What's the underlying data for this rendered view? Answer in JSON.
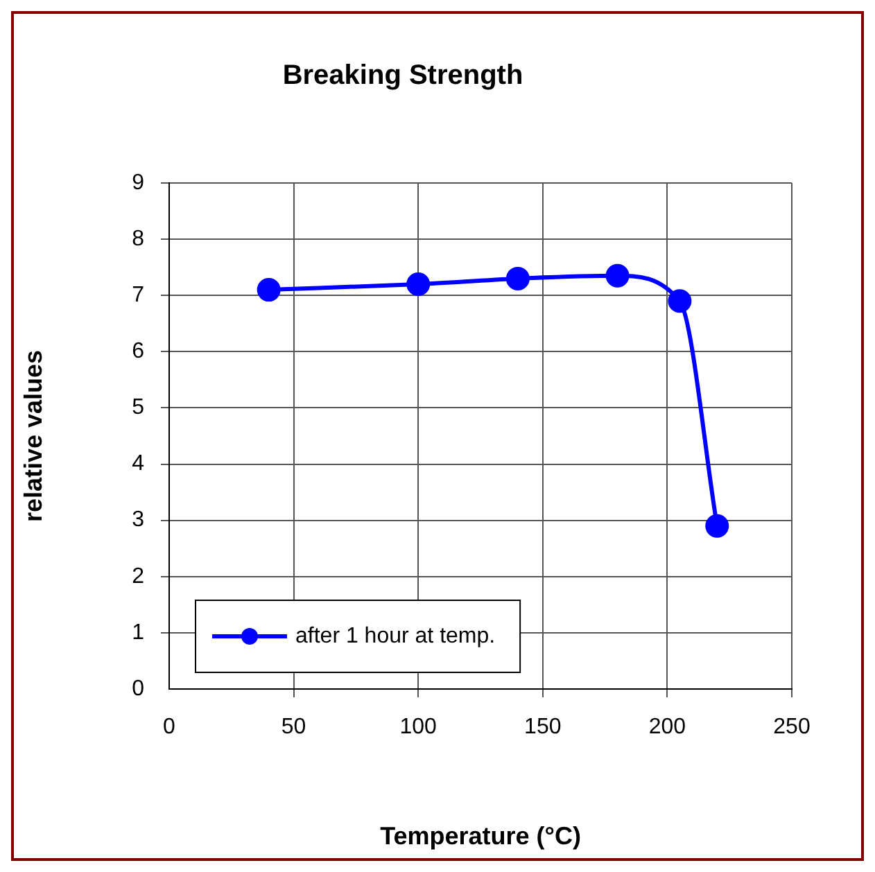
{
  "chart_data": {
    "type": "line",
    "title": "Breaking Strength",
    "xlabel": "Temperature (°C)",
    "ylabel": "relative values",
    "series": [
      {
        "name": "after 1 hour at temp.",
        "color": "#0000ff",
        "x": [
          40,
          100,
          140,
          180,
          205,
          220
        ],
        "values": [
          7.1,
          7.2,
          7.3,
          7.35,
          6.9,
          2.9
        ]
      }
    ],
    "xlim": [
      0,
      250
    ],
    "xticks": [
      0,
      50,
      100,
      150,
      200,
      250
    ],
    "ylim": [
      0,
      9
    ],
    "yticks": [
      0,
      1,
      2,
      3,
      4,
      5,
      6,
      7,
      8,
      9
    ],
    "grid": true,
    "legend": "bottom left",
    "marker": "circle",
    "line_style": "solid"
  }
}
